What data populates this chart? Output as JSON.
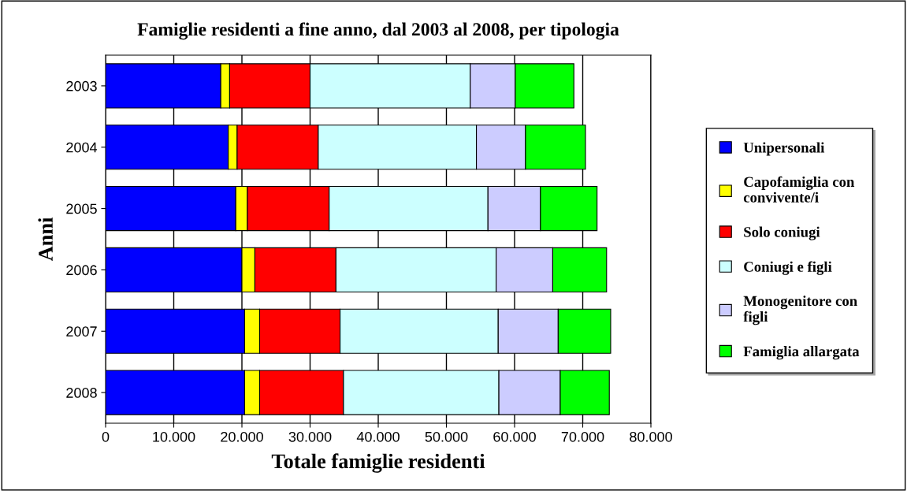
{
  "chart_data": {
    "type": "bar",
    "orientation": "horizontal",
    "stacked": true,
    "title": "Famiglie residenti a fine anno, dal 2003 al 2008, per tipologia",
    "xlabel": "Totale famiglie residenti",
    "ylabel": "Anni",
    "categories": [
      "2003",
      "2004",
      "2005",
      "2006",
      "2007",
      "2008"
    ],
    "series": [
      {
        "name": "Unipersonali",
        "color": "#0000ff",
        "values": [
          16900,
          18000,
          19100,
          20000,
          20400,
          20400
        ]
      },
      {
        "name": "Capofamiglia con\nconvivente/i",
        "color": "#ffff00",
        "values": [
          1300,
          1300,
          1700,
          1900,
          2200,
          2200
        ]
      },
      {
        "name": "Solo coniugi",
        "color": "#ff0000",
        "values": [
          11800,
          11900,
          12000,
          11900,
          11800,
          12300
        ]
      },
      {
        "name": "Coniugi e figli",
        "color": "#ccffff",
        "values": [
          23500,
          23200,
          23300,
          23500,
          23200,
          22800
        ]
      },
      {
        "name": "Monogenitore con\nfigli",
        "color": "#ccccff",
        "values": [
          6600,
          7200,
          7700,
          8300,
          8800,
          9000
        ]
      },
      {
        "name": "Famiglia allargata",
        "color": "#00ff00",
        "values": [
          8600,
          8800,
          8300,
          7900,
          7700,
          7200
        ]
      }
    ],
    "xlim": [
      0,
      80000
    ],
    "xticks": [
      0,
      {
        "value": 10000,
        "label": "10.000"
      },
      {
        "value": 20000,
        "label": "20.000"
      },
      {
        "value": 30000,
        "label": "30.000"
      },
      {
        "value": 40000,
        "label": "40.000"
      },
      {
        "value": 50000,
        "label": "50.000"
      },
      {
        "value": 60000,
        "label": "60.000"
      },
      {
        "value": 70000,
        "label": "70.000"
      },
      {
        "value": 80000,
        "label": "80.000"
      }
    ],
    "grid": "x",
    "legend": "right"
  }
}
